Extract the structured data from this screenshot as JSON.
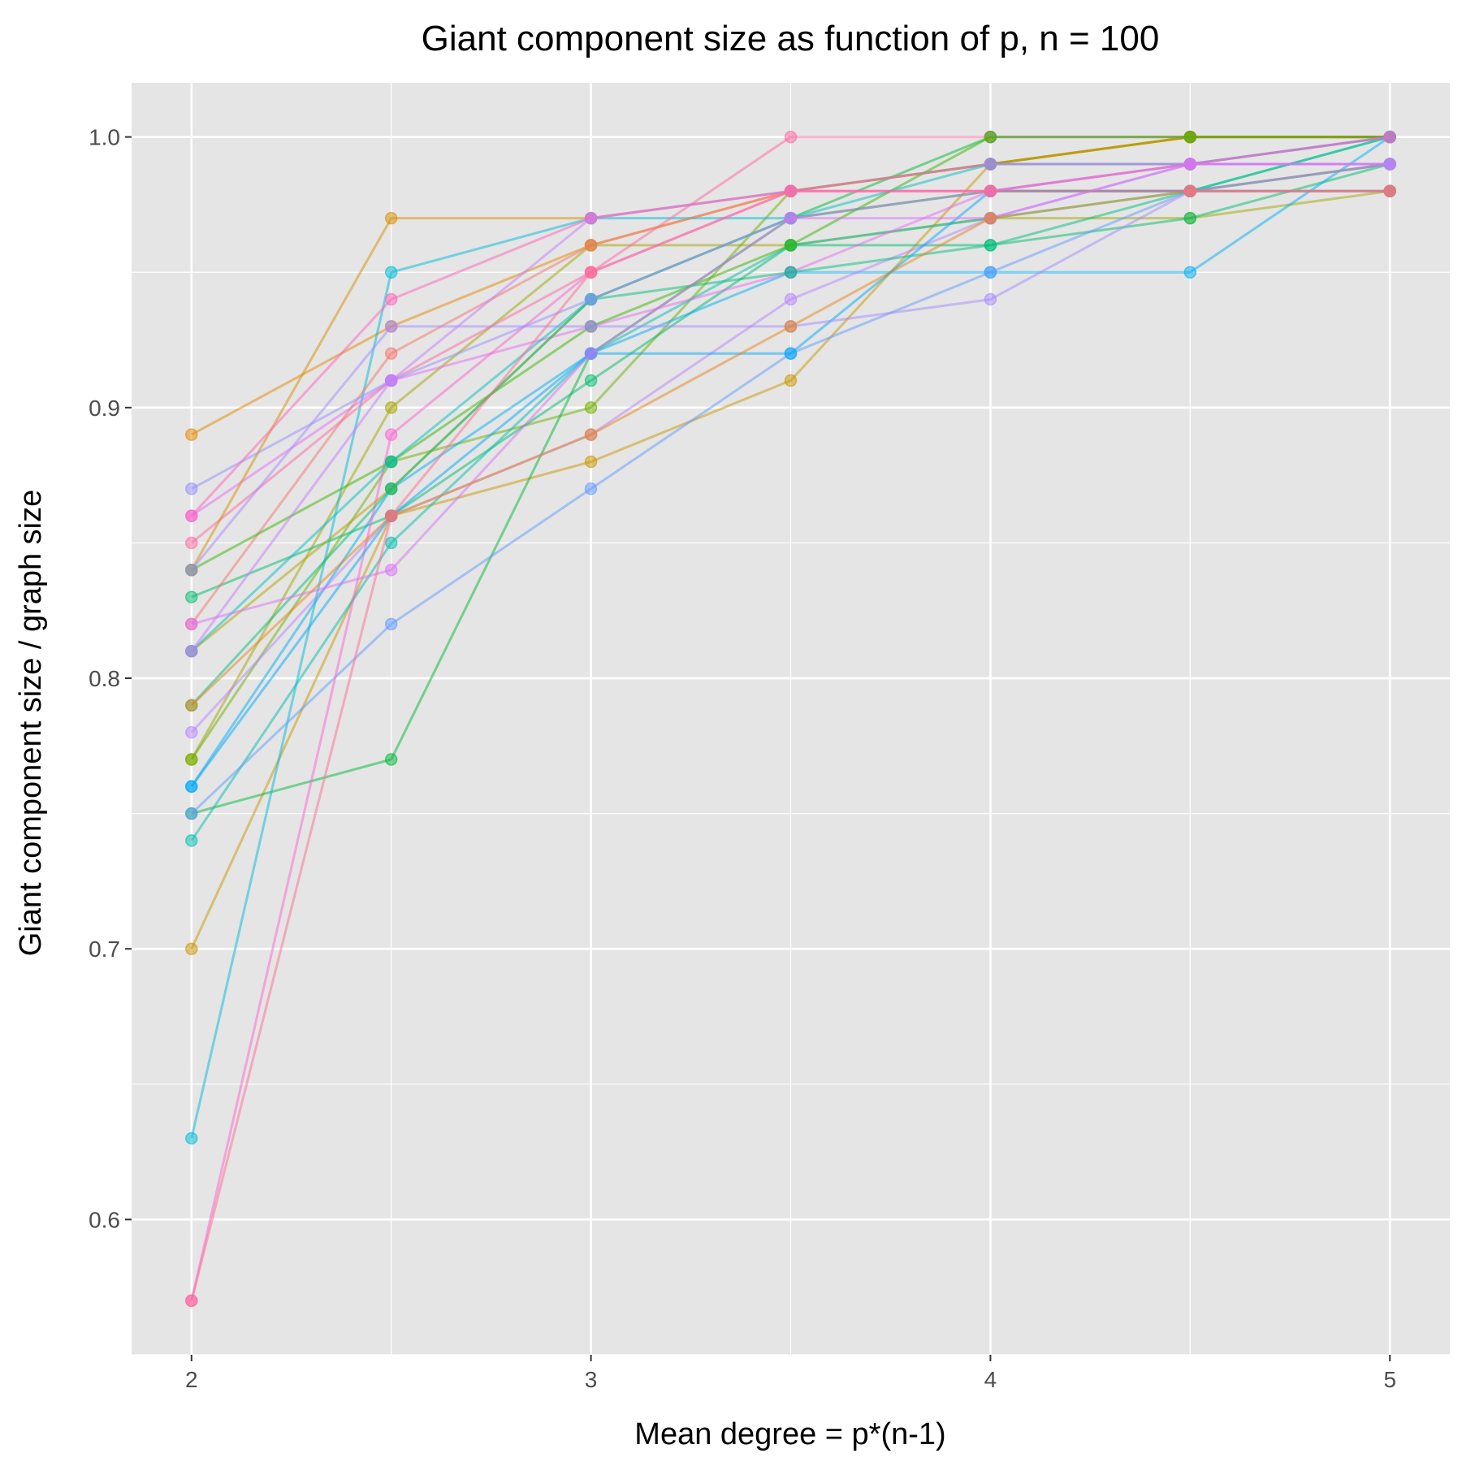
{
  "chart_data": {
    "type": "line",
    "title": "Giant component size as function of p, n = 100",
    "xlabel": "Mean degree = p*(n-1)",
    "ylabel": "Giant component size / graph size",
    "x": [
      2,
      2.5,
      3,
      3.5,
      4,
      4.5,
      5
    ],
    "xlim": [
      1.85,
      5.15
    ],
    "ylim": [
      0.55,
      1.02
    ],
    "x_ticks": [
      2,
      3,
      4,
      5
    ],
    "x_tick_labels": [
      "2",
      "3",
      "4",
      "5"
    ],
    "y_ticks": [
      0.6,
      0.7,
      0.8,
      0.9,
      1.0
    ],
    "y_tick_labels": [
      "0.6",
      "0.7",
      "0.8",
      "0.9",
      "1.0"
    ],
    "grid": true,
    "legend": "none",
    "background": "#e5e5e5",
    "series": [
      {
        "color": "#e58700",
        "values": [
          0.89,
          0.93,
          0.96,
          0.98,
          0.99,
          1.0,
          1.0
        ]
      },
      {
        "color": "#c99800",
        "values": [
          0.7,
          0.86,
          0.88,
          0.91,
          0.99,
          1.0,
          1.0
        ]
      },
      {
        "color": "#a3a500",
        "values": [
          0.77,
          0.9,
          0.96,
          0.96,
          0.97,
          0.97,
          0.98
        ]
      },
      {
        "color": "#6bb100",
        "values": [
          0.77,
          0.88,
          0.9,
          0.98,
          0.99,
          1.0,
          1.0
        ]
      },
      {
        "color": "#00ba38",
        "values": [
          0.75,
          0.77,
          0.92,
          0.97,
          1.0,
          1.0,
          1.0
        ]
      },
      {
        "color": "#00be6c",
        "values": [
          0.83,
          0.86,
          0.91,
          0.96,
          0.96,
          0.97,
          0.99
        ]
      },
      {
        "color": "#00c0af",
        "values": [
          0.74,
          0.85,
          0.92,
          0.96,
          0.97,
          0.98,
          1.0
        ]
      },
      {
        "color": "#00bcd8",
        "values": [
          0.63,
          0.95,
          0.97,
          0.97,
          0.98,
          0.98,
          0.99
        ]
      },
      {
        "color": "#00b0f6",
        "values": [
          0.76,
          0.87,
          0.92,
          0.95,
          0.95,
          0.95,
          1.0
        ]
      },
      {
        "color": "#619cff",
        "values": [
          0.75,
          0.82,
          0.87,
          0.92,
          0.95,
          0.98,
          0.99
        ]
      },
      {
        "color": "#b983ff",
        "values": [
          0.78,
          0.86,
          0.89,
          0.94,
          0.97,
          0.99,
          0.99
        ]
      },
      {
        "color": "#e76bf3",
        "values": [
          0.86,
          0.91,
          0.93,
          0.95,
          0.98,
          0.98,
          0.98
        ]
      },
      {
        "color": "#fd61d1",
        "values": [
          0.57,
          0.89,
          0.95,
          0.98,
          0.98,
          0.99,
          0.99
        ]
      },
      {
        "color": "#ff67a4",
        "values": [
          0.85,
          0.91,
          0.95,
          1.0,
          1.0,
          1.0,
          1.0
        ]
      },
      {
        "color": "#f8766d",
        "values": [
          0.82,
          0.92,
          0.96,
          0.98,
          0.99,
          0.99,
          1.0
        ]
      },
      {
        "color": "#d89000",
        "values": [
          0.84,
          0.97,
          0.97,
          0.98,
          0.99,
          1.0,
          1.0
        ]
      },
      {
        "color": "#b79f00",
        "values": [
          0.81,
          0.87,
          0.94,
          0.97,
          0.98,
          0.98,
          0.99
        ]
      },
      {
        "color": "#39b600",
        "values": [
          0.84,
          0.88,
          0.93,
          0.96,
          1.0,
          1.0,
          1.0
        ]
      },
      {
        "color": "#00bf7d",
        "values": [
          0.79,
          0.87,
          0.94,
          0.95,
          0.96,
          0.98,
          1.0
        ]
      },
      {
        "color": "#00bfc4",
        "values": [
          0.81,
          0.88,
          0.94,
          0.97,
          0.99,
          0.99,
          1.0
        ]
      },
      {
        "color": "#00a9ff",
        "values": [
          0.76,
          0.86,
          0.92,
          0.92,
          0.98,
          0.98,
          0.98
        ]
      },
      {
        "color": "#9590ff",
        "values": [
          0.87,
          0.91,
          0.94,
          0.97,
          0.98,
          0.99,
          1.0
        ]
      },
      {
        "color": "#dc71fa",
        "values": [
          0.82,
          0.84,
          0.92,
          0.97,
          0.97,
          0.99,
          0.99
        ]
      },
      {
        "color": "#ff62bc",
        "values": [
          0.86,
          0.94,
          0.97,
          0.98,
          0.98,
          0.99,
          1.0
        ]
      },
      {
        "color": "#c77cff",
        "values": [
          0.81,
          0.91,
          0.97,
          0.98,
          0.99,
          0.99,
          0.99
        ]
      },
      {
        "color": "#a58aff",
        "values": [
          0.84,
          0.93,
          0.93,
          0.93,
          0.94,
          0.98,
          0.99
        ]
      },
      {
        "color": "#e7861b",
        "values": [
          0.79,
          0.86,
          0.89,
          0.93,
          0.97,
          0.98,
          0.98
        ]
      },
      {
        "color": "#ff6c91",
        "values": [
          0.57,
          0.86,
          0.95,
          0.98,
          0.98,
          0.98,
          0.98
        ]
      }
    ]
  }
}
